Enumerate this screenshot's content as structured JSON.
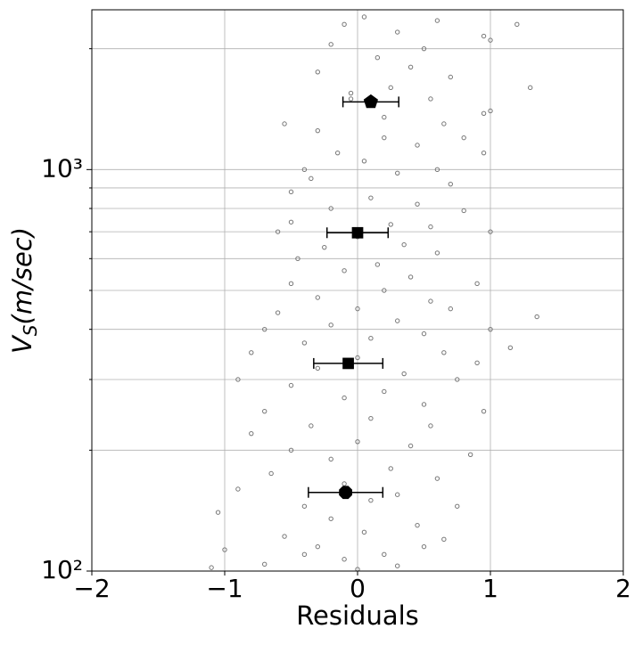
{
  "chart_data": {
    "type": "scatter",
    "xlabel": "Residuals",
    "ylabel": [
      "V",
      "S",
      "(m/sec)"
    ],
    "xlim": [
      -2,
      2
    ],
    "ylim": [
      100,
      2500
    ],
    "log_y": true,
    "grid": true,
    "xticks": [
      {
        "value": -2,
        "label": "−2"
      },
      {
        "value": -1,
        "label": "−1"
      },
      0,
      1,
      2
    ],
    "yticks": [
      {
        "value": 100,
        "label": "10²"
      },
      {
        "value": 1000,
        "label": "10³"
      }
    ],
    "yminorticks": [
      200,
      300,
      400,
      500,
      600,
      700,
      800,
      900,
      2000
    ],
    "series": [
      {
        "kind": "points",
        "color": "#777777",
        "x": [
          0.05,
          -0.1,
          0.3,
          0.6,
          1.2,
          1.0,
          0.95,
          0.5,
          -0.2,
          0.15,
          0.4,
          -0.3,
          0.7,
          0.25,
          -0.05,
          0.55,
          1.3,
          1.0,
          0.95,
          -0.55,
          -0.3,
          0.2,
          0.45,
          0.8,
          0.95,
          -0.15,
          0.05,
          0.6,
          -0.4,
          0.3,
          0.7,
          -0.5,
          0.1,
          0.45,
          -0.2,
          0.8,
          -0.5,
          0.25,
          0.55,
          -0.6,
          1.0,
          0.0,
          0.35,
          -0.25,
          0.6,
          -0.45,
          0.15,
          -0.1,
          0.4,
          0.9,
          -0.5,
          0.2,
          -0.3,
          0.55,
          0.0,
          -0.6,
          0.7,
          1.35,
          0.3,
          -0.2,
          -0.7,
          0.5,
          0.1,
          -0.4,
          1.15,
          0.65,
          -0.8,
          0.0,
          -0.3,
          0.35,
          0.75,
          -0.9,
          -0.5,
          0.2,
          -0.1,
          0.5,
          -0.7,
          0.95,
          0.1,
          -0.35,
          0.55,
          -0.8,
          0.0,
          0.4,
          -0.5,
          0.85,
          -0.2,
          0.25,
          -0.65,
          0.6,
          -0.1,
          -0.9,
          0.3,
          0.1,
          -0.4,
          0.75,
          -1.05,
          -0.2,
          0.45,
          0.05,
          -0.55,
          0.65,
          -0.3,
          -1.0,
          0.2,
          -0.1,
          -0.7,
          0.3,
          -1.1,
          0.0,
          -0.4,
          0.5,
          1.0,
          0.9,
          -0.05,
          0.2,
          -0.35,
          0.65
        ],
        "y": [
          2400,
          2300,
          2200,
          2350,
          2300,
          2100,
          2150,
          2000,
          2050,
          1900,
          1800,
          1750,
          1700,
          1600,
          1550,
          1500,
          1600,
          1400,
          1380,
          1300,
          1250,
          1200,
          1150,
          1200,
          1100,
          1100,
          1050,
          1000,
          1000,
          980,
          920,
          880,
          850,
          820,
          800,
          790,
          740,
          730,
          720,
          700,
          700,
          680,
          650,
          640,
          620,
          600,
          580,
          560,
          540,
          520,
          520,
          500,
          480,
          470,
          450,
          440,
          450,
          430,
          420,
          410,
          400,
          390,
          380,
          370,
          360,
          350,
          350,
          340,
          320,
          310,
          300,
          300,
          290,
          280,
          270,
          260,
          250,
          250,
          240,
          230,
          230,
          220,
          210,
          205,
          200,
          195,
          190,
          180,
          175,
          170,
          165,
          160,
          155,
          150,
          145,
          145,
          140,
          135,
          130,
          125,
          122,
          120,
          115,
          113,
          110,
          107,
          104,
          103,
          102,
          101,
          110,
          115,
          400,
          330,
          1500,
          1350,
          950,
          1300
        ]
      },
      {
        "kind": "binned",
        "color": "#000000",
        "x": [
          0.1,
          0.0,
          -0.07,
          -0.09
        ],
        "y": [
          1474,
          696,
          329,
          157
        ],
        "xerr": [
          0.21,
          0.23,
          0.26,
          0.28
        ]
      }
    ]
  }
}
